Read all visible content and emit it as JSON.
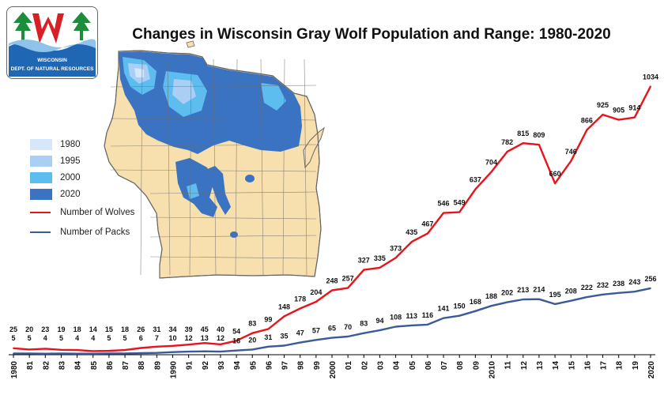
{
  "chart_data": {
    "type": "line",
    "title": "Changes in Wisconsin Gray Wolf Population and Range: 1980-2020",
    "xlabel": "",
    "ylabel": "",
    "categories": [
      "1980",
      "81",
      "82",
      "83",
      "84",
      "85",
      "86",
      "87",
      "88",
      "89",
      "1990",
      "91",
      "92",
      "93",
      "94",
      "95",
      "96",
      "97",
      "98",
      "99",
      "2000",
      "01",
      "02",
      "03",
      "04",
      "05",
      "06",
      "07",
      "08",
      "09",
      "2010",
      "11",
      "12",
      "13",
      "14",
      "15",
      "16",
      "17",
      "18",
      "19",
      "2020"
    ],
    "series": [
      {
        "name": "Number of Wolves",
        "color": "#e8131b",
        "values": [
          25,
          20,
          23,
          19,
          18,
          14,
          15,
          18,
          26,
          31,
          34,
          39,
          45,
          40,
          54,
          83,
          99,
          148,
          178,
          204,
          248,
          257,
          327,
          335,
          373,
          435,
          467,
          546,
          549,
          637,
          704,
          782,
          815,
          809,
          660,
          746,
          866,
          925,
          905,
          914,
          1034
        ]
      },
      {
        "name": "Number of Packs",
        "color": "#3a5a9a",
        "values": [
          5,
          5,
          4,
          5,
          4,
          4,
          5,
          5,
          6,
          7,
          10,
          12,
          13,
          12,
          16,
          20,
          31,
          35,
          47,
          57,
          65,
          70,
          83,
          94,
          108,
          113,
          116,
          141,
          150,
          168,
          188,
          202,
          213,
          214,
          195,
          208,
          222,
          232,
          238,
          243,
          256
        ]
      }
    ],
    "ylim": [
      0,
      1050
    ],
    "grid": false,
    "legend_placement": "left"
  },
  "map_legend": [
    {
      "label": "1980",
      "color": "#d6e6fb"
    },
    {
      "label": "1995",
      "color": "#a9cff5"
    },
    {
      "label": "2000",
      "color": "#5cbdee"
    },
    {
      "label": "2020",
      "color": "#3a73c2"
    }
  ],
  "map": {
    "land_color": "#f7dfae",
    "border_color": "#666666"
  },
  "logo": {
    "line1": "WISCONSIN",
    "line2": "DEPT. OF NATURAL RESOURCES"
  }
}
